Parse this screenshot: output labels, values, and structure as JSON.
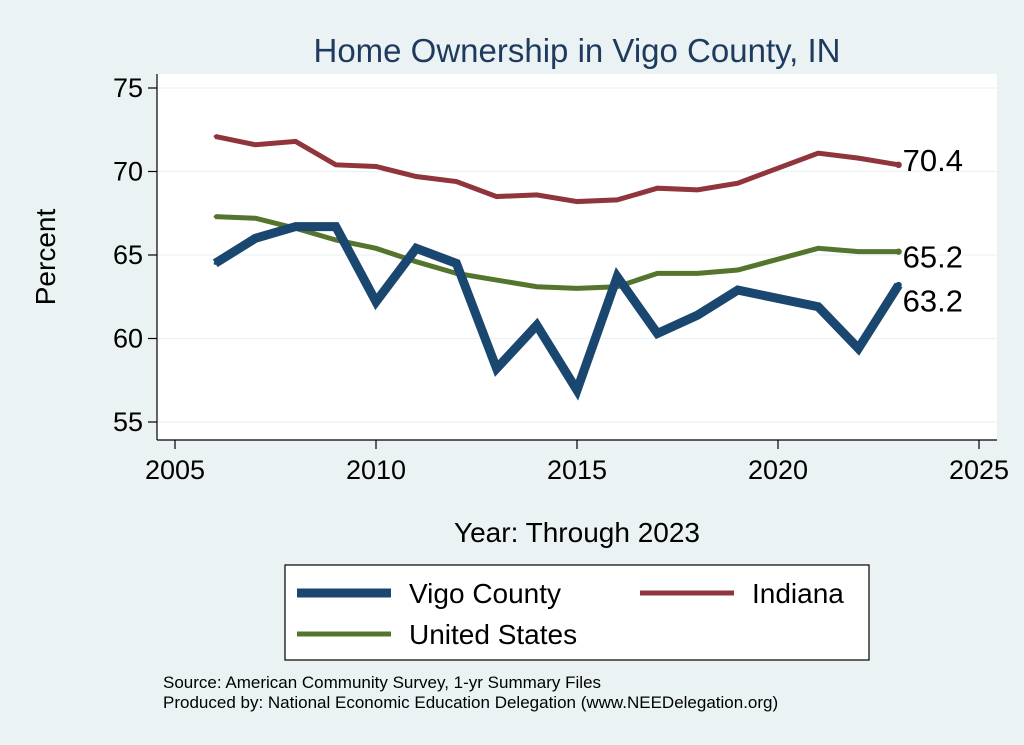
{
  "chart_data": {
    "type": "line",
    "title": "Home Ownership in Vigo County, IN",
    "xlabel": "Year: Through 2023",
    "ylabel": "Percent",
    "xlim": [
      2005,
      2025
    ],
    "ylim": [
      55,
      75
    ],
    "xticks": [
      "2005",
      "2010",
      "2015",
      "2020",
      "2025"
    ],
    "yticks": [
      "55",
      "60",
      "65",
      "70",
      "75"
    ],
    "grid": "horizontal",
    "legend_position": "bottom",
    "series": [
      {
        "name": "Vigo County",
        "color": "#1a476f",
        "x": [
          2006,
          2007,
          2008,
          2009,
          2010,
          2011,
          2012,
          2013,
          2014,
          2015,
          2016,
          2017,
          2018,
          2019,
          2021,
          2022,
          2023
        ],
        "values": [
          64.5,
          66.0,
          66.7,
          66.7,
          62.2,
          65.4,
          64.5,
          58.2,
          60.8,
          56.9,
          63.7,
          60.3,
          61.4,
          62.9,
          61.9,
          59.4,
          63.2
        ],
        "end_label": "63.2"
      },
      {
        "name": "Indiana",
        "color": "#90353b",
        "x": [
          2006,
          2007,
          2008,
          2009,
          2010,
          2011,
          2012,
          2013,
          2014,
          2015,
          2016,
          2017,
          2018,
          2019,
          2021,
          2022,
          2023
        ],
        "values": [
          72.1,
          71.6,
          71.8,
          70.4,
          70.3,
          69.7,
          69.4,
          68.5,
          68.6,
          68.2,
          68.3,
          69.0,
          68.9,
          69.3,
          71.1,
          70.8,
          70.4
        ],
        "end_label": "70.4"
      },
      {
        "name": "United States",
        "color": "#55752f",
        "x": [
          2006,
          2007,
          2008,
          2009,
          2010,
          2011,
          2012,
          2013,
          2014,
          2015,
          2016,
          2017,
          2018,
          2019,
          2021,
          2022,
          2023
        ],
        "values": [
          67.3,
          67.2,
          66.6,
          65.9,
          65.4,
          64.6,
          63.9,
          63.5,
          63.1,
          63.0,
          63.1,
          63.9,
          63.9,
          64.1,
          65.4,
          65.2,
          65.2
        ],
        "end_label": "65.2"
      }
    ],
    "notes": [
      "Source: American Community Survey, 1-yr Summary Files",
      "Produced by: National Economic Education Delegation (www.NEEDelegation.org)"
    ]
  }
}
